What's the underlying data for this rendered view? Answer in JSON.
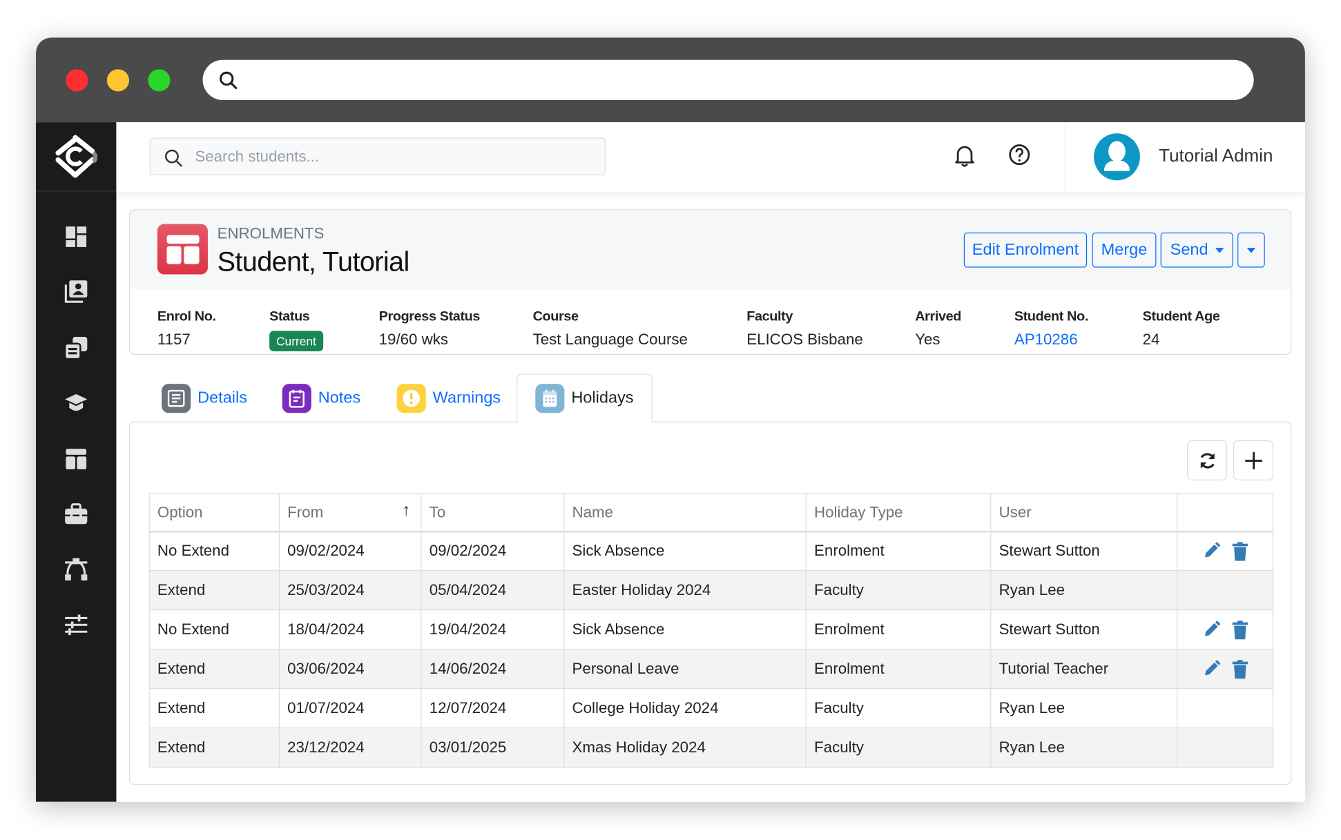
{
  "browser": {
    "url": ""
  },
  "sidebar": {
    "items": [
      {
        "icon": "dashboard-icon"
      },
      {
        "icon": "contacts-icon"
      },
      {
        "icon": "documents-icon"
      },
      {
        "icon": "graduation-cap-icon"
      },
      {
        "icon": "layout-icon"
      },
      {
        "icon": "briefcase-icon"
      },
      {
        "icon": "network-icon"
      },
      {
        "icon": "sliders-icon"
      }
    ]
  },
  "header": {
    "search_placeholder": "Search students...",
    "user_name": "Tutorial Admin"
  },
  "enrolment": {
    "section": "ENROLMENTS",
    "title": "Student, Tutorial",
    "buttons": {
      "edit": "Edit Enrolment",
      "merge": "Merge",
      "send": "Send"
    },
    "fields": [
      {
        "label": "Enrol No.",
        "value": "1157"
      },
      {
        "label": "Status",
        "value": "Current"
      },
      {
        "label": "Progress Status",
        "value": "19/60 wks"
      },
      {
        "label": "Course",
        "value": "Test Language Course"
      },
      {
        "label": "Faculty",
        "value": "ELICOS Bisbane"
      },
      {
        "label": "Arrived",
        "value": "Yes"
      },
      {
        "label": "Student No.",
        "value": "AP10286"
      },
      {
        "label": "Student Age",
        "value": "24"
      }
    ]
  },
  "tabs": [
    {
      "label": "Details"
    },
    {
      "label": "Notes"
    },
    {
      "label": "Warnings"
    },
    {
      "label": "Holidays",
      "active": true
    }
  ],
  "colors": {
    "accent": "#0d6efd",
    "status_badge": "#198754",
    "avatar": "#0e97c5",
    "enrolment_icon": "#dc3545"
  },
  "table": {
    "columns": [
      "Option",
      "From",
      "To",
      "Name",
      "Holiday Type",
      "User",
      ""
    ],
    "sort": {
      "column": "From",
      "direction": "ascending"
    },
    "rows": [
      {
        "option": "No Extend",
        "from": "09/02/2024",
        "to": "09/02/2024",
        "name": "Sick Absence",
        "type": "Enrolment",
        "user": "Stewart Sutton",
        "actions": true
      },
      {
        "option": "Extend",
        "from": "25/03/2024",
        "to": "05/04/2024",
        "name": "Easter Holiday 2024",
        "type": "Faculty",
        "user": "Ryan Lee",
        "actions": false
      },
      {
        "option": "No Extend",
        "from": "18/04/2024",
        "to": "19/04/2024",
        "name": "Sick Absence",
        "type": "Enrolment",
        "user": "Stewart Sutton",
        "actions": true
      },
      {
        "option": "Extend",
        "from": "03/06/2024",
        "to": "14/06/2024",
        "name": "Personal Leave",
        "type": "Enrolment",
        "user": "Tutorial Teacher",
        "actions": true
      },
      {
        "option": "Extend",
        "from": "01/07/2024",
        "to": "12/07/2024",
        "name": "College Holiday 2024",
        "type": "Faculty",
        "user": "Ryan Lee",
        "actions": false
      },
      {
        "option": "Extend",
        "from": "23/12/2024",
        "to": "03/01/2025",
        "name": "Xmas Holiday 2024",
        "type": "Faculty",
        "user": "Ryan Lee",
        "actions": false
      }
    ]
  }
}
